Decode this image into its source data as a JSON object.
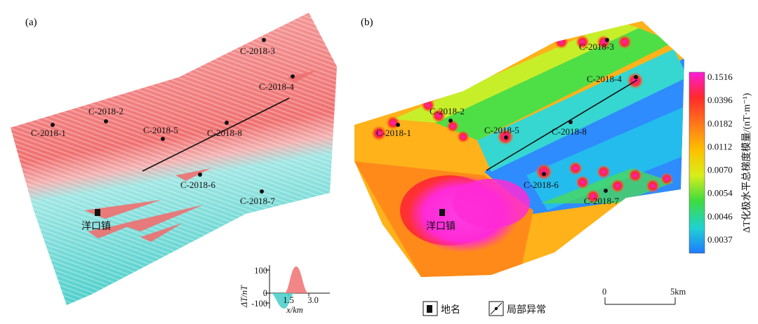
{
  "panels": {
    "a": {
      "label": "(a)"
    },
    "b": {
      "label": "(b)"
    }
  },
  "wells": [
    "C-2018-1",
    "C-2018-2",
    "C-2018-3",
    "C-2018-4",
    "C-2018-5",
    "C-2018-6",
    "C-2018-7",
    "C-2018-8"
  ],
  "town_name": "洋口镇",
  "inset": {
    "ylabel": "ΔT/nT",
    "xlabel": "x/km",
    "yticks": [
      "100",
      "0",
      "-100"
    ],
    "xticks": [
      "1.5",
      "3.0"
    ]
  },
  "colorbar": {
    "title": "ΔT化极水平总梯度模量/(nT·m⁻¹)",
    "ticks": [
      "0.1516",
      "0.0396",
      "0.0182",
      "0.0112",
      "0.0070",
      "0.0054",
      "0.0046",
      "0.0037"
    ],
    "colors": [
      "#ff1ad9",
      "#ff2a2a",
      "#ff7a1a",
      "#ffc000",
      "#d8ee1a",
      "#3fdc3f",
      "#1fd2d2",
      "#1f7aff"
    ]
  },
  "scalebar": {
    "start": "0",
    "end": "5km"
  },
  "legend": {
    "place_label": "地名",
    "anomaly_label": "局部异常"
  }
}
